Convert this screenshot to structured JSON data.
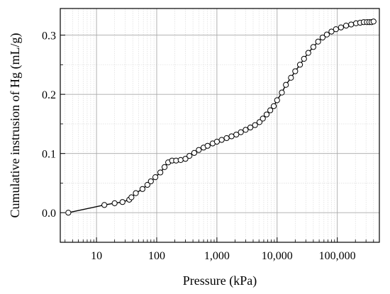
{
  "chart_data": {
    "type": "line",
    "xscale": "log",
    "xlabel": "Pressure (kPa)",
    "ylabel": "Cumulative instrusion of Hg (mL/g)",
    "xlim": [
      2.5,
      500000
    ],
    "ylim": [
      -0.05,
      0.345
    ],
    "grid": true,
    "marker": "open-circle",
    "x_ticks": [
      10,
      100,
      1000,
      10000,
      100000
    ],
    "x_tick_labels": [
      "10",
      "100",
      "1,000",
      "10,000",
      "100,000"
    ],
    "y_ticks": [
      0.0,
      0.1,
      0.2,
      0.3
    ],
    "y_tick_labels": [
      "0.0",
      "0.1",
      "0.2",
      "0.3"
    ],
    "series": [
      {
        "x": [
          3.4,
          13.5,
          20,
          27,
          35,
          38,
          45,
          58,
          70,
          80,
          95,
          115,
          135,
          155,
          180,
          210,
          250,
          300,
          350,
          420,
          500,
          600,
          700,
          850,
          1000,
          1200,
          1450,
          1750,
          2100,
          2500,
          3000,
          3600,
          4300,
          5100,
          5800,
          6700,
          7700,
          8800,
          10000,
          12000,
          14000,
          17000,
          20000,
          24000,
          28000,
          33000,
          40000,
          48000,
          57000,
          67000,
          80000,
          95000,
          115000,
          140000,
          170000,
          205000,
          240000,
          275000,
          310000,
          340000,
          370000,
          400000
        ],
        "y": [
          0.0,
          0.013,
          0.016,
          0.018,
          0.022,
          0.026,
          0.033,
          0.04,
          0.047,
          0.053,
          0.06,
          0.068,
          0.077,
          0.085,
          0.088,
          0.088,
          0.089,
          0.091,
          0.096,
          0.101,
          0.106,
          0.11,
          0.113,
          0.117,
          0.12,
          0.123,
          0.126,
          0.129,
          0.132,
          0.136,
          0.14,
          0.144,
          0.148,
          0.153,
          0.159,
          0.166,
          0.173,
          0.18,
          0.19,
          0.203,
          0.216,
          0.228,
          0.239,
          0.25,
          0.26,
          0.27,
          0.28,
          0.289,
          0.296,
          0.301,
          0.306,
          0.31,
          0.313,
          0.316,
          0.318,
          0.32,
          0.321,
          0.322,
          0.322,
          0.322,
          0.322,
          0.323
        ]
      }
    ]
  }
}
